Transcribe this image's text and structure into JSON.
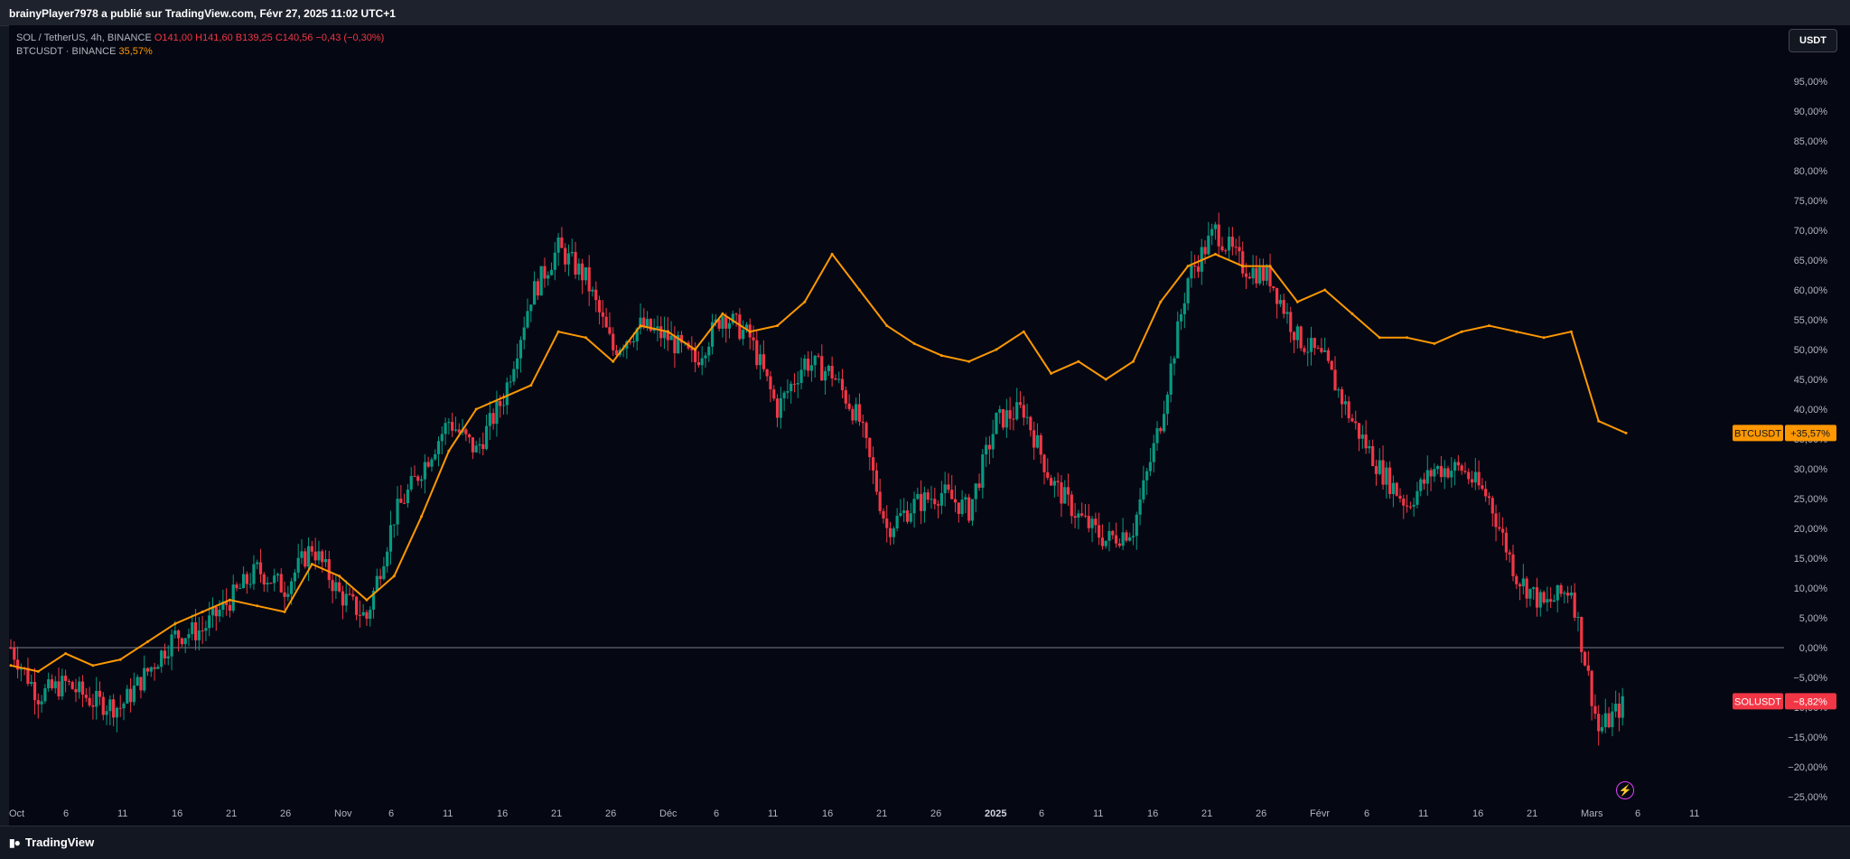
{
  "header": {
    "published_by": "brainyPlayer7978 a publié sur TradingView.com, Févr 27, 2025 11:02 UTC+1"
  },
  "legend": {
    "main": {
      "symbol": "SOL / TetherUS, 4h, BINANCE",
      "open": "O141,00",
      "high": "H141,60",
      "low": "B139,25",
      "close": "C140,56",
      "change": "−0,43 (−0,30%)"
    },
    "compare": {
      "symbol": "BTCUSDT · BINANCE",
      "value": "35,57%"
    }
  },
  "currency_button": "USDT",
  "footer": {
    "brand": "TradingView"
  },
  "colors": {
    "background": "#050813",
    "up": "#089981",
    "down": "#f23645",
    "btc_line": "#ff9800",
    "text": "#b2b5be"
  },
  "icons": [
    "tradingview-logo-icon",
    "lightning-icon"
  ],
  "chart_data": [
    {
      "type": "candlestick",
      "name": "SOLUSDT",
      "label": "SOLUSDT",
      "last_value_label": "−8,82%",
      "y_unit": "percent",
      "x": [
        "Oct 1",
        "Oct 3",
        "Oct 6",
        "Oct 9",
        "Oct 11",
        "Oct 14",
        "Oct 16",
        "Oct 19",
        "Oct 21",
        "Oct 24",
        "Oct 26",
        "Oct 29",
        "Oct 31",
        "Nov 3",
        "Nov 6",
        "Nov 8",
        "Nov 11",
        "Nov 13",
        "Nov 16",
        "Nov 18",
        "Nov 21",
        "Nov 23",
        "Nov 26",
        "Nov 28",
        "Dec 1",
        "Dec 3",
        "Dec 6",
        "Dec 8",
        "Dec 11",
        "Dec 13",
        "Dec 16",
        "Dec 18",
        "Dec 21",
        "Dec 23",
        "Dec 26",
        "Dec 28",
        "Jan 1",
        "Jan 3",
        "Jan 6",
        "Jan 8",
        "Jan 11",
        "Jan 13",
        "Jan 16",
        "Jan 18",
        "Jan 20",
        "Jan 23",
        "Jan 26",
        "Jan 28",
        "Feb 1",
        "Feb 3",
        "Feb 6",
        "Feb 8",
        "Feb 11",
        "Feb 13",
        "Feb 16",
        "Feb 18",
        "Feb 21",
        "Feb 23",
        "Feb 25",
        "Feb 27"
      ],
      "values": [
        0,
        -8,
        -6,
        -9,
        -10,
        -4,
        2,
        3,
        8,
        13,
        10,
        17,
        9,
        5,
        22,
        30,
        38,
        33,
        42,
        59,
        67,
        62,
        50,
        54,
        52,
        48,
        56,
        52,
        40,
        48,
        46,
        38,
        20,
        24,
        26,
        23,
        38,
        40,
        28,
        22,
        18,
        20,
        38,
        62,
        70,
        64,
        62,
        52,
        48,
        38,
        30,
        24,
        30,
        30,
        25,
        12,
        7,
        10,
        -14,
        -9
      ]
    },
    {
      "type": "line",
      "name": "BTCUSDT",
      "label": "BTCUSDT",
      "last_value_label": "+35,57%",
      "y_unit": "percent",
      "x": [
        "Oct 1",
        "Oct 3",
        "Oct 6",
        "Oct 9",
        "Oct 11",
        "Oct 14",
        "Oct 16",
        "Oct 19",
        "Oct 21",
        "Oct 24",
        "Oct 26",
        "Oct 29",
        "Oct 31",
        "Nov 3",
        "Nov 6",
        "Nov 8",
        "Nov 11",
        "Nov 13",
        "Nov 16",
        "Nov 18",
        "Nov 21",
        "Nov 23",
        "Nov 26",
        "Nov 28",
        "Dec 1",
        "Dec 3",
        "Dec 6",
        "Dec 8",
        "Dec 11",
        "Dec 13",
        "Dec 16",
        "Dec 18",
        "Dec 21",
        "Dec 23",
        "Dec 26",
        "Dec 28",
        "Jan 1",
        "Jan 3",
        "Jan 6",
        "Jan 8",
        "Jan 11",
        "Jan 13",
        "Jan 16",
        "Jan 18",
        "Jan 20",
        "Jan 23",
        "Jan 26",
        "Jan 28",
        "Feb 1",
        "Feb 3",
        "Feb 6",
        "Feb 8",
        "Feb 11",
        "Feb 13",
        "Feb 16",
        "Feb 18",
        "Feb 21",
        "Feb 23",
        "Feb 25",
        "Feb 27"
      ],
      "values": [
        -3,
        -4,
        -1,
        -3,
        -2,
        1,
        4,
        6,
        8,
        7,
        6,
        14,
        12,
        8,
        12,
        22,
        33,
        40,
        42,
        44,
        53,
        52,
        48,
        54,
        53,
        50,
        56,
        53,
        54,
        58,
        66,
        60,
        54,
        51,
        49,
        48,
        50,
        53,
        46,
        48,
        45,
        48,
        58,
        64,
        66,
        64,
        64,
        58,
        60,
        56,
        52,
        52,
        51,
        53,
        54,
        53,
        52,
        53,
        38,
        36
      ]
    }
  ],
  "axes": {
    "y_tick_labels": [
      "95,00%",
      "90,00%",
      "85,00%",
      "80,00%",
      "75,00%",
      "70,00%",
      "65,00%",
      "60,00%",
      "55,00%",
      "50,00%",
      "45,00%",
      "40,00%",
      "35,00%",
      "30,00%",
      "25,00%",
      "20,00%",
      "15,00%",
      "10,00%",
      "5,00%",
      "0,00%",
      "−5,00%",
      "−10,00%",
      "−15,00%",
      "−20,00%",
      "−25,00%"
    ],
    "ylim": [
      -25,
      100
    ],
    "x_tick_labels": [
      "Oct",
      "6",
      "11",
      "16",
      "21",
      "26",
      "Nov",
      "6",
      "11",
      "16",
      "21",
      "26",
      "Déc",
      "6",
      "11",
      "16",
      "21",
      "26",
      "2025",
      "6",
      "11",
      "16",
      "21",
      "26",
      "Févr",
      "6",
      "11",
      "16",
      "21",
      "Mars",
      "6",
      "11"
    ]
  }
}
